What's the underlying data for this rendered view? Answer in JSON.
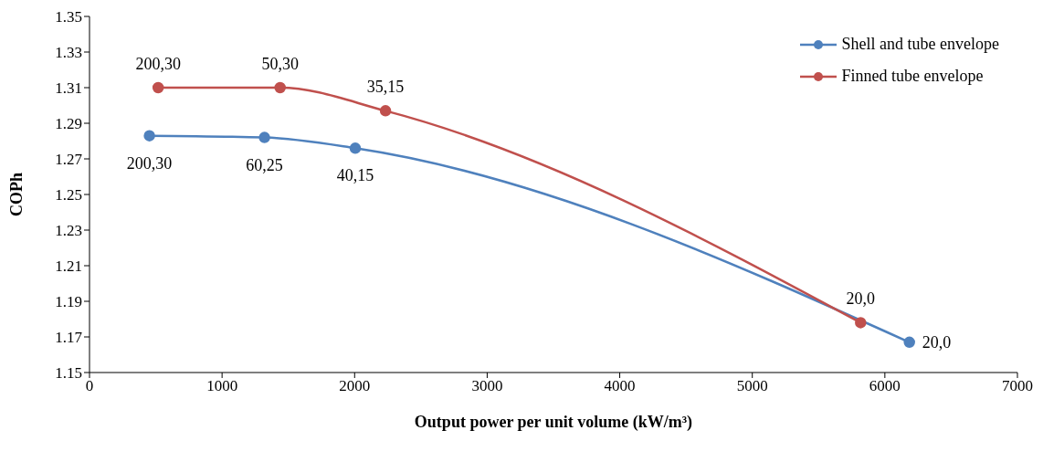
{
  "chart_data": {
    "type": "line",
    "xlabel": "Output power per unit volume (kW/m³)",
    "ylabel": "COPh",
    "xlim": [
      0,
      7000
    ],
    "xticks": [
      0,
      1000,
      2000,
      3000,
      4000,
      5000,
      6000,
      7000
    ],
    "ylim": [
      1.15,
      1.35
    ],
    "yticks": [
      1.15,
      1.17,
      1.19,
      1.21,
      1.23,
      1.25,
      1.27,
      1.29,
      1.31,
      1.33,
      1.35
    ],
    "grid": false,
    "legend": "top right",
    "marker": "circle",
    "line_style": "solid",
    "series": [
      {
        "name": "Shell and tube envelope",
        "color": "#4f81bd",
        "x": [
          452,
          1320,
          2005,
          6185
        ],
        "values": [
          1.283,
          1.282,
          1.276,
          1.167
        ]
      },
      {
        "name": "Finned tube envelope",
        "color": "#c0504d",
        "x": [
          518,
          1438,
          2233,
          5817
        ],
        "values": [
          1.31,
          1.31,
          1.297,
          1.178
        ]
      }
    ],
    "annotations": [
      {
        "text": "200,30",
        "x": 452,
        "y": 1.283
      },
      {
        "text": "60,25",
        "x": 1320,
        "y": 1.282
      },
      {
        "text": "40,15",
        "x": 2005,
        "y": 1.276
      },
      {
        "text": "20,0",
        "x": 6185,
        "y": 1.167
      },
      {
        "text": "200,30",
        "x": 518,
        "y": 1.31
      },
      {
        "text": "50,30",
        "x": 1438,
        "y": 1.31
      },
      {
        "text": "35,15",
        "x": 2233,
        "y": 1.297
      },
      {
        "text": "20,0",
        "x": 5817,
        "y": 1.178
      }
    ]
  }
}
